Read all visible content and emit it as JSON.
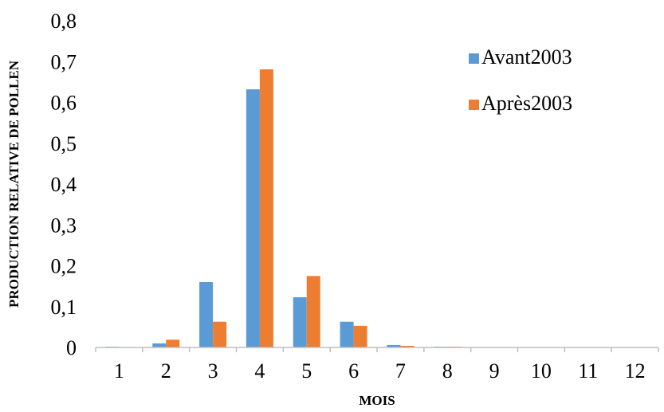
{
  "chart_data": {
    "type": "bar",
    "title": "",
    "xlabel": "MOIS",
    "ylabel": "PRODUCTION RELATIVE DE POLLEN",
    "categories": [
      "1",
      "2",
      "3",
      "4",
      "5",
      "6",
      "7",
      "8",
      "9",
      "10",
      "11",
      "12"
    ],
    "ylim": [
      0,
      0.8
    ],
    "yticks": [
      "0",
      "0,1",
      "0,2",
      "0,3",
      "0,4",
      "0,5",
      "0,6",
      "0,7",
      "0,8"
    ],
    "grid": false,
    "legend_position": "top-right",
    "series": [
      {
        "name": "Avant2003",
        "color": "#5b9bd5",
        "values": [
          0.002,
          0.01,
          0.16,
          0.632,
          0.123,
          0.063,
          0.006,
          0.002,
          0.001,
          0,
          0,
          0
        ]
      },
      {
        "name": "Après2003",
        "color": "#ed7d31",
        "values": [
          0.001,
          0.019,
          0.063,
          0.681,
          0.175,
          0.053,
          0.004,
          0.002,
          0.001,
          0,
          0,
          0
        ]
      }
    ]
  }
}
